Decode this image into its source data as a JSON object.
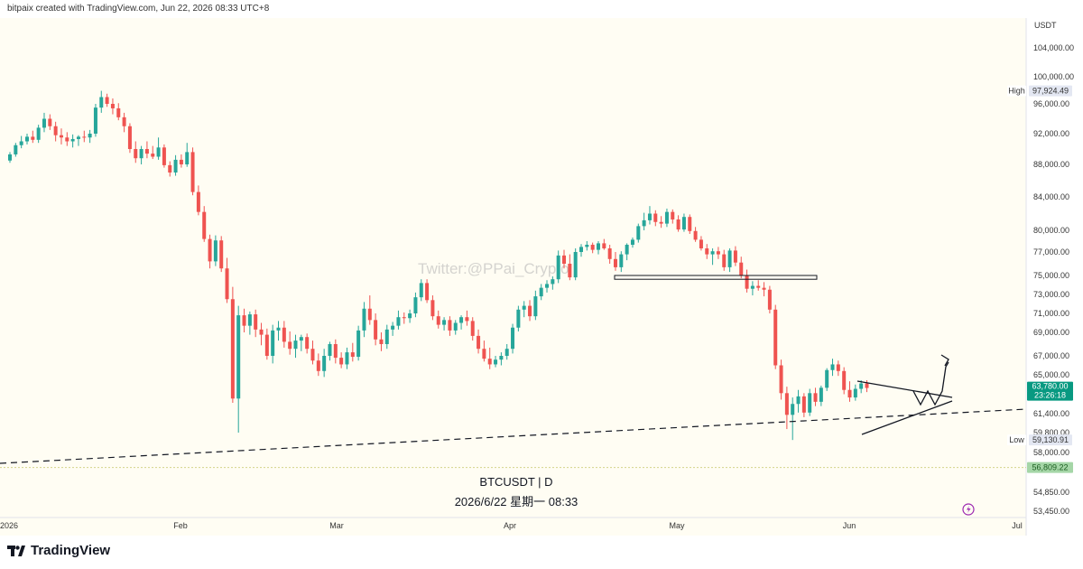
{
  "header": {
    "credit": "bitpaix created with TradingView.com, Jun 22, 2026 08:33 UTC+8"
  },
  "footer": {
    "brand": "TradingView"
  },
  "colors": {
    "up": "#26a69a",
    "down": "#ef5350",
    "background": "#fffdf3",
    "last_price": "#089981"
  },
  "chart_data": {
    "type": "candlestick",
    "symbol_title": "BTCUSDT | D",
    "datetime_label": "2026/6/22 星期一 08:33",
    "watermark": "Twitter:@PPai_Crypto",
    "currency": "USDT",
    "y_ticks": [
      104000,
      100000,
      96000,
      92000,
      88000,
      84000,
      80000,
      77000,
      75000,
      73000,
      71000,
      69000,
      67000,
      65000,
      61400,
      59800,
      58000,
      54850,
      53450
    ],
    "y_tick_labels": [
      "104,000.00",
      "100,000.00",
      "96,000.00",
      "92,000.00",
      "88,000.00",
      "84,000.00",
      "80,000.00",
      "77,000.00",
      "75,000.00",
      "73,000.00",
      "71,000.00",
      "69,000.00",
      "67,000.00",
      "65,000.00",
      "61,400.00",
      "59,800.00",
      "58,000.00",
      "54,850.00",
      "53,450.00"
    ],
    "x_labels": [
      "2026",
      "Feb",
      "Mar",
      "Apr",
      "May",
      "Jun",
      "Jul"
    ],
    "high": {
      "label": "High",
      "value": "97,924.49"
    },
    "low": {
      "label": "Low",
      "value": "59,130.91"
    },
    "last_price": {
      "value": "63,780.00",
      "countdown": "23:26:18"
    },
    "level_price": "56,809.22",
    "candles": [
      [
        88500,
        89600,
        88200,
        89300
      ],
      [
        89300,
        90800,
        89000,
        90500
      ],
      [
        90500,
        91700,
        90100,
        91000
      ],
      [
        91000,
        92000,
        90600,
        91600
      ],
      [
        91600,
        92400,
        90800,
        91200
      ],
      [
        91200,
        93200,
        90800,
        92800
      ],
      [
        92800,
        94800,
        92200,
        94000
      ],
      [
        94000,
        94600,
        92500,
        93000
      ],
      [
        93000,
        93600,
        91000,
        91800
      ],
      [
        91800,
        92700,
        90600,
        91500
      ],
      [
        91500,
        92200,
        90400,
        91000
      ],
      [
        91000,
        91900,
        90200,
        91300
      ],
      [
        91300,
        91800,
        90400,
        91600
      ],
      [
        91600,
        92400,
        90900,
        91500
      ],
      [
        91500,
        92500,
        90800,
        92000
      ],
      [
        92000,
        96000,
        91600,
        95500
      ],
      [
        95500,
        97924,
        94800,
        97000
      ],
      [
        97000,
        97500,
        95600,
        96000
      ],
      [
        96000,
        96800,
        94600,
        95400
      ],
      [
        95400,
        96100,
        93800,
        94200
      ],
      [
        94200,
        94800,
        92200,
        93000
      ],
      [
        93000,
        93400,
        89500,
        90000
      ],
      [
        90000,
        91000,
        88200,
        88800
      ],
      [
        88800,
        90400,
        88000,
        90000
      ],
      [
        90000,
        91000,
        88800,
        89400
      ],
      [
        89400,
        90400,
        88700,
        89000
      ],
      [
        89000,
        91500,
        88600,
        90200
      ],
      [
        90200,
        90600,
        87600,
        87900
      ],
      [
        87900,
        88400,
        86500,
        87000
      ],
      [
        87000,
        89200,
        86600,
        88600
      ],
      [
        88600,
        89300,
        87600,
        88000
      ],
      [
        88000,
        90800,
        87700,
        89600
      ],
      [
        89600,
        90200,
        84200,
        84600
      ],
      [
        84600,
        85400,
        81800,
        82200
      ],
      [
        82200,
        82900,
        78400,
        78800
      ],
      [
        78800,
        79400,
        75600,
        76200
      ],
      [
        76200,
        79300,
        75800,
        78600
      ],
      [
        78600,
        79200,
        75300,
        75600
      ],
      [
        75600,
        76500,
        72100,
        72500
      ],
      [
        72500,
        73800,
        62400,
        62800
      ],
      [
        62800,
        71800,
        59800,
        70800
      ],
      [
        70800,
        71500,
        69000,
        69700
      ],
      [
        69700,
        71200,
        68800,
        70900
      ],
      [
        70900,
        71400,
        68600,
        69300
      ],
      [
        69300,
        70000,
        67900,
        68800
      ],
      [
        68800,
        69400,
        66600,
        67000
      ],
      [
        67000,
        69800,
        66200,
        69200
      ],
      [
        69200,
        70200,
        68300,
        69500
      ],
      [
        69500,
        70200,
        67700,
        68200
      ],
      [
        68200,
        69100,
        67100,
        67600
      ],
      [
        67600,
        68800,
        66800,
        68300
      ],
      [
        68300,
        68800,
        67400,
        68600
      ],
      [
        68600,
        68900,
        67200,
        67600
      ],
      [
        67600,
        68300,
        66100,
        66500
      ],
      [
        66500,
        67200,
        64900,
        65400
      ],
      [
        65400,
        67600,
        64800,
        67000
      ],
      [
        67000,
        68200,
        66500,
        68000
      ],
      [
        68000,
        68400,
        66200,
        66800
      ],
      [
        66800,
        67300,
        65700,
        66100
      ],
      [
        66100,
        67700,
        65600,
        67300
      ],
      [
        67300,
        68100,
        66400,
        66900
      ],
      [
        66900,
        69700,
        66500,
        69200
      ],
      [
        69200,
        72200,
        68600,
        71500
      ],
      [
        71500,
        72900,
        69800,
        70300
      ],
      [
        70300,
        71000,
        67900,
        68400
      ],
      [
        68400,
        69000,
        67400,
        68000
      ],
      [
        68000,
        69800,
        67600,
        69300
      ],
      [
        69300,
        70100,
        68700,
        69700
      ],
      [
        69700,
        71300,
        69300,
        70600
      ],
      [
        70600,
        71100,
        69900,
        70500
      ],
      [
        70500,
        71400,
        70000,
        71000
      ],
      [
        71000,
        73200,
        70600,
        72700
      ],
      [
        72700,
        74600,
        72300,
        74200
      ],
      [
        74200,
        74600,
        72100,
        72400
      ],
      [
        72400,
        72900,
        70300,
        70700
      ],
      [
        70700,
        71300,
        69400,
        69800
      ],
      [
        69800,
        70600,
        69200,
        70300
      ],
      [
        70300,
        70700,
        68700,
        69200
      ],
      [
        69200,
        70300,
        68800,
        70000
      ],
      [
        70000,
        70800,
        69300,
        70600
      ],
      [
        70600,
        71300,
        69700,
        70200
      ],
      [
        70200,
        70600,
        68300,
        68700
      ],
      [
        68700,
        69300,
        67200,
        67600
      ],
      [
        67600,
        68300,
        66400,
        66700
      ],
      [
        66700,
        67700,
        65600,
        66100
      ],
      [
        66100,
        67000,
        65800,
        66600
      ],
      [
        66600,
        67300,
        66000,
        67000
      ],
      [
        67000,
        68000,
        66600,
        67600
      ],
      [
        67600,
        69900,
        67200,
        69500
      ],
      [
        69500,
        71800,
        69100,
        71400
      ],
      [
        71400,
        72300,
        70600,
        71800
      ],
      [
        71800,
        72400,
        70200,
        70700
      ],
      [
        70700,
        73400,
        70300,
        72800
      ],
      [
        72800,
        74100,
        72400,
        73700
      ],
      [
        73700,
        74500,
        73200,
        74100
      ],
      [
        74100,
        74900,
        73500,
        74600
      ],
      [
        74600,
        77200,
        74200,
        76700
      ],
      [
        76700,
        77300,
        75600,
        76000
      ],
      [
        76000,
        76800,
        74500,
        74800
      ],
      [
        74800,
        77500,
        74500,
        77000
      ],
      [
        77000,
        78100,
        76600,
        77700
      ],
      [
        77700,
        78500,
        77200,
        78000
      ],
      [
        78000,
        78300,
        76900,
        77300
      ],
      [
        77300,
        78500,
        76800,
        78200
      ],
      [
        78200,
        78800,
        77300,
        77500
      ],
      [
        77500,
        78000,
        76000,
        76400
      ],
      [
        76400,
        77000,
        75400,
        75700
      ],
      [
        75700,
        77100,
        75300,
        76800
      ],
      [
        76800,
        78200,
        76300,
        78000
      ],
      [
        78000,
        79000,
        77600,
        78700
      ],
      [
        78700,
        80800,
        78300,
        80500
      ],
      [
        80500,
        82100,
        80000,
        81200
      ],
      [
        81200,
        82900,
        80700,
        82000
      ],
      [
        82000,
        82400,
        80500,
        81000
      ],
      [
        81000,
        81700,
        80300,
        80800
      ],
      [
        80800,
        82600,
        80400,
        82200
      ],
      [
        82200,
        82500,
        80800,
        81300
      ],
      [
        81300,
        81800,
        79800,
        80100
      ],
      [
        80100,
        82000,
        79800,
        81600
      ],
      [
        81600,
        81900,
        79500,
        79900
      ],
      [
        79900,
        80400,
        78400,
        78700
      ],
      [
        78700,
        79200,
        77200,
        77500
      ],
      [
        77500,
        78100,
        76400,
        76800
      ],
      [
        76800,
        77500,
        75900,
        77100
      ],
      [
        77100,
        77700,
        76400,
        76800
      ],
      [
        76800,
        77300,
        75400,
        75700
      ],
      [
        75700,
        77500,
        75300,
        77200
      ],
      [
        77200,
        77800,
        75800,
        76100
      ],
      [
        76100,
        76600,
        74700,
        75000
      ],
      [
        75000,
        75500,
        73200,
        73600
      ],
      [
        73600,
        74400,
        72900,
        73900
      ],
      [
        73900,
        74500,
        73400,
        73700
      ],
      [
        73700,
        74300,
        72800,
        73500
      ],
      [
        73500,
        73900,
        71000,
        71400
      ],
      [
        71400,
        71900,
        65600,
        66000
      ],
      [
        66000,
        66600,
        62700,
        63300
      ],
      [
        63300,
        63900,
        60100,
        61300
      ],
      [
        61300,
        62900,
        59131,
        62300
      ],
      [
        62300,
        63600,
        61500,
        63000
      ],
      [
        63000,
        63300,
        61100,
        61500
      ],
      [
        61500,
        63700,
        61200,
        63300
      ],
      [
        63300,
        63800,
        62100,
        62500
      ],
      [
        62500,
        64000,
        62100,
        63800
      ],
      [
        63800,
        65700,
        63500,
        65500
      ],
      [
        65500,
        66700,
        64900,
        66100
      ],
      [
        66100,
        66500,
        64900,
        65400
      ],
      [
        65400,
        65800,
        63200,
        63600
      ],
      [
        63600,
        64400,
        62500,
        62900
      ],
      [
        62900,
        64100,
        62600,
        63700
      ],
      [
        63700,
        64500,
        63300,
        64200
      ],
      [
        64200,
        64500,
        63400,
        63780
      ]
    ],
    "annotations": [
      {
        "type": "range-box",
        "label": ""
      },
      {
        "type": "dashed-trendline",
        "label": ""
      },
      {
        "type": "triangle-pattern",
        "label": ""
      },
      {
        "type": "arrow-up",
        "label": ""
      }
    ]
  }
}
